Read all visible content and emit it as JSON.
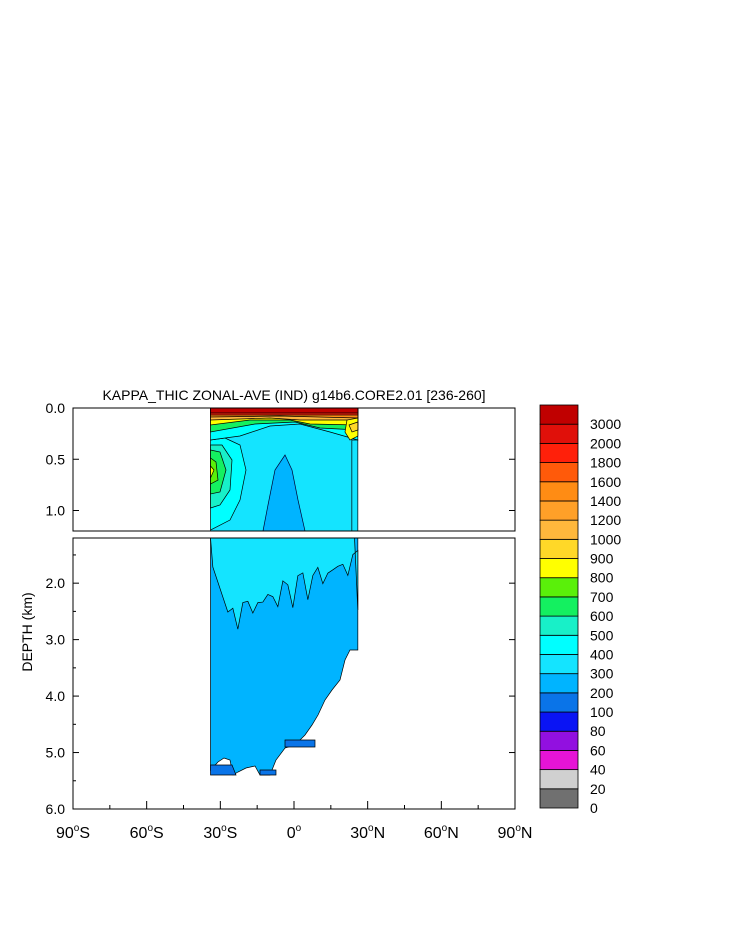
{
  "chart_data": {
    "type": "heatmap",
    "title": "KAPPA_THIC ZONAL-AVE (IND) g14b6.CORE2.01 [236-260]",
    "ylabel": "DEPTH (km)",
    "xlabel": "",
    "x_ticks": [
      {
        "value": -90,
        "num": "90",
        "hemi": "S"
      },
      {
        "value": -60,
        "num": "60",
        "hemi": "S"
      },
      {
        "value": -30,
        "num": "30",
        "hemi": "S"
      },
      {
        "value": 0,
        "num": "0",
        "hemi": ""
      },
      {
        "value": 30,
        "num": "30",
        "hemi": "N"
      },
      {
        "value": 60,
        "num": "60",
        "hemi": "N"
      },
      {
        "value": 90,
        "num": "90",
        "hemi": "N"
      }
    ],
    "xlim": [
      -90,
      90
    ],
    "upper_panel": {
      "ylim": [
        0.0,
        1.2
      ],
      "y_ticks": [
        "0.0",
        "0.5",
        "1.0"
      ],
      "y_tick_values": [
        0.0,
        0.5,
        1.0
      ]
    },
    "lower_panel": {
      "ylim": [
        1.2,
        6.0
      ],
      "y_ticks": [
        "2.0",
        "3.0",
        "4.0",
        "5.0",
        "6.0"
      ],
      "y_tick_values": [
        2.0,
        3.0,
        4.0,
        5.0,
        6.0
      ]
    },
    "colorbar": {
      "levels": [
        "0",
        "20",
        "40",
        "60",
        "80",
        "100",
        "200",
        "300",
        "400",
        "500",
        "600",
        "700",
        "800",
        "900",
        "1000",
        "1200",
        "1400",
        "1600",
        "1800",
        "2000",
        "3000"
      ],
      "colors": [
        "#707070",
        "#d0d0d0",
        "#e614d6",
        "#9210e0",
        "#0a14f4",
        "#0a74e8",
        "#00b4ff",
        "#14e4ff",
        "#00ffff",
        "#18f0c8",
        "#14f060",
        "#5af00a",
        "#ffff00",
        "#ffd828",
        "#ffb83c",
        "#ffa028",
        "#ff8c14",
        "#ff5a0a",
        "#ff200a",
        "#e0100a",
        "#c00000"
      ]
    },
    "data_extent": {
      "lat_min": -34,
      "lat_max": 26,
      "max_depth_km": 5.4
    }
  }
}
